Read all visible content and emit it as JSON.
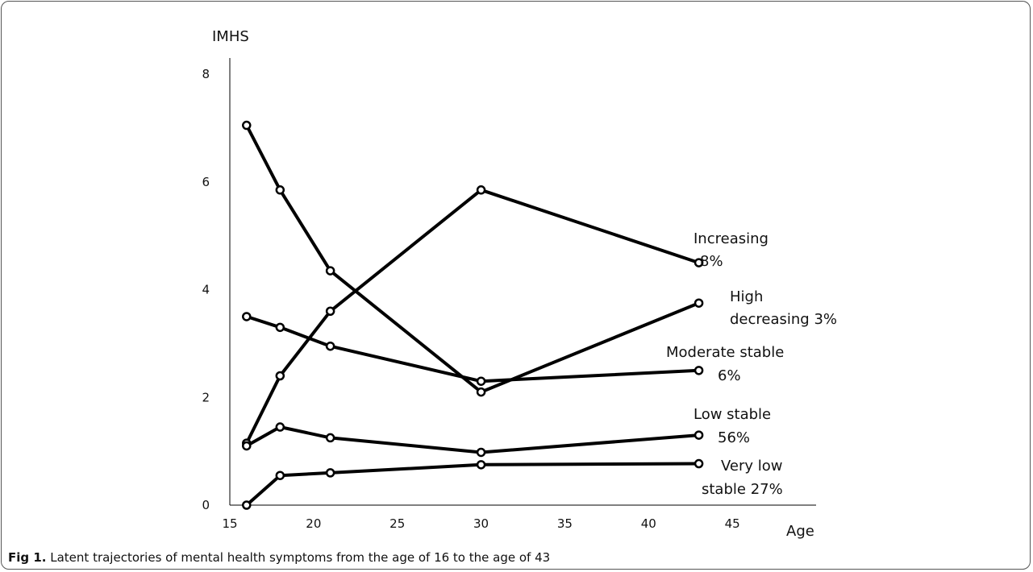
{
  "caption": {
    "label": "Fig 1.",
    "text": " Latent trajectories of mental health symptoms from the age of 16 to the age of 43"
  },
  "colors": {
    "line": "#000000",
    "axis": "#000000",
    "marker_fill": "#ffffff"
  },
  "chart_data": {
    "type": "line",
    "xlabel": "Age",
    "ylabel": "IMHS",
    "xlim": [
      15,
      50
    ],
    "ylim": [
      0,
      8
    ],
    "xticks": [
      15,
      20,
      25,
      30,
      35,
      40,
      45
    ],
    "yticks": [
      0,
      2,
      4,
      6,
      8
    ],
    "x": [
      16,
      18,
      21,
      30,
      43
    ],
    "grid": false,
    "legend": "inline-right",
    "series": [
      {
        "label_lines": [
          "Increasing",
          "8%"
        ],
        "values": [
          1.15,
          2.4,
          3.6,
          5.85,
          4.5
        ]
      },
      {
        "label_lines": [
          "High",
          "decreasing 3%"
        ],
        "values": [
          7.05,
          5.85,
          4.35,
          2.1,
          3.75
        ]
      },
      {
        "label_lines": [
          "Moderate stable",
          "6%"
        ],
        "values": [
          3.5,
          3.3,
          2.95,
          2.3,
          2.5
        ]
      },
      {
        "label_lines": [
          "Low stable",
          "56%"
        ],
        "values": [
          1.1,
          1.45,
          1.25,
          0.98,
          1.3
        ]
      },
      {
        "label_lines": [
          "Very low",
          "stable 27%"
        ],
        "values": [
          0.0,
          0.55,
          0.6,
          0.75,
          0.77
        ]
      }
    ]
  }
}
